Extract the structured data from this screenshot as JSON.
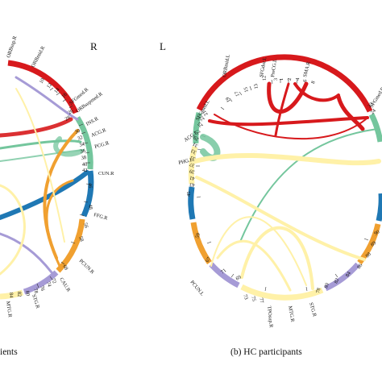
{
  "panel_a": {
    "hemisphere_right": "R",
    "caption": "ients",
    "regions": [
      {
        "label": "ORBsup.R",
        "color": "#d7191c"
      },
      {
        "label": "ORBmid.R",
        "color": "#d7191c"
      },
      {
        "label": "SFGmed.R",
        "color": "#d7191c"
      },
      {
        "label": "ORBsupmed.R",
        "color": "#d7191c"
      },
      {
        "label": "INS.R",
        "color": "#74c69d"
      },
      {
        "label": "ACG.R",
        "color": "#74c69d"
      },
      {
        "label": "PCG.R",
        "color": "#74c69d"
      },
      {
        "label": "CUN.R",
        "color": "#1f78b4"
      },
      {
        "label": "FFG.R",
        "color": "#1f78b4"
      },
      {
        "label": "PCUN.R",
        "color": "#f0a030"
      },
      {
        "label": "CAU.R",
        "color": "#f0a030"
      },
      {
        "label": "STG.R",
        "color": "#a69bd6"
      },
      {
        "label": "MTG.R",
        "color": "#a69bd6"
      }
    ],
    "ticks": [
      "10",
      "12",
      "14",
      "16",
      "28",
      "26",
      "30",
      "32",
      "34",
      "36",
      "38",
      "40",
      "42",
      "46",
      "48",
      "56",
      "58",
      "68",
      "72",
      "74",
      "76",
      "78",
      "80",
      "82",
      "84"
    ]
  },
  "panel_b": {
    "hemisphere_left": "L",
    "caption": "(b) HC participants",
    "regions": [
      {
        "label": "ORBmid.L",
        "color": "#d7191c"
      },
      {
        "label": "SFGdor.L",
        "color": "#d7191c"
      },
      {
        "label": "PreCG.L",
        "color": "#d7191c"
      },
      {
        "label": "SMA.R",
        "color": "#d7191c"
      },
      {
        "label": "SFGmed.L",
        "color": "#d7191c"
      },
      {
        "label": "SFGmed.R",
        "color": "#d7191c"
      },
      {
        "label": "ACG.L",
        "color": "#74c69d"
      },
      {
        "label": "PHG.L",
        "color": "#74c69d"
      },
      {
        "label": "PCUN.L",
        "color": "#f0a030"
      },
      {
        "label": "TPOsup.R",
        "color": "#fff1a8"
      },
      {
        "label": "MTG.R",
        "color": "#fff1a8"
      },
      {
        "label": "STG.R",
        "color": "#a69bd6"
      }
    ],
    "ticks": [
      "1",
      "2",
      "3",
      "4",
      "6",
      "8",
      "12",
      "13",
      "15",
      "17",
      "19",
      "21",
      "22",
      "23",
      "24",
      "25",
      "27",
      "29",
      "31",
      "33",
      "35",
      "37",
      "39",
      "41",
      "43",
      "45",
      "59",
      "67",
      "69",
      "71",
      "73",
      "75",
      "77",
      "78",
      "80",
      "82",
      "84",
      "86",
      "88",
      "89",
      "90"
    ]
  },
  "colors": {
    "frontal": "#d7191c",
    "limbic": "#74c69d",
    "occipital": "#1f78b4",
    "parietal": "#f0a030",
    "temporal": "#fff1a8",
    "temporal_dark": "#a69bd6"
  }
}
